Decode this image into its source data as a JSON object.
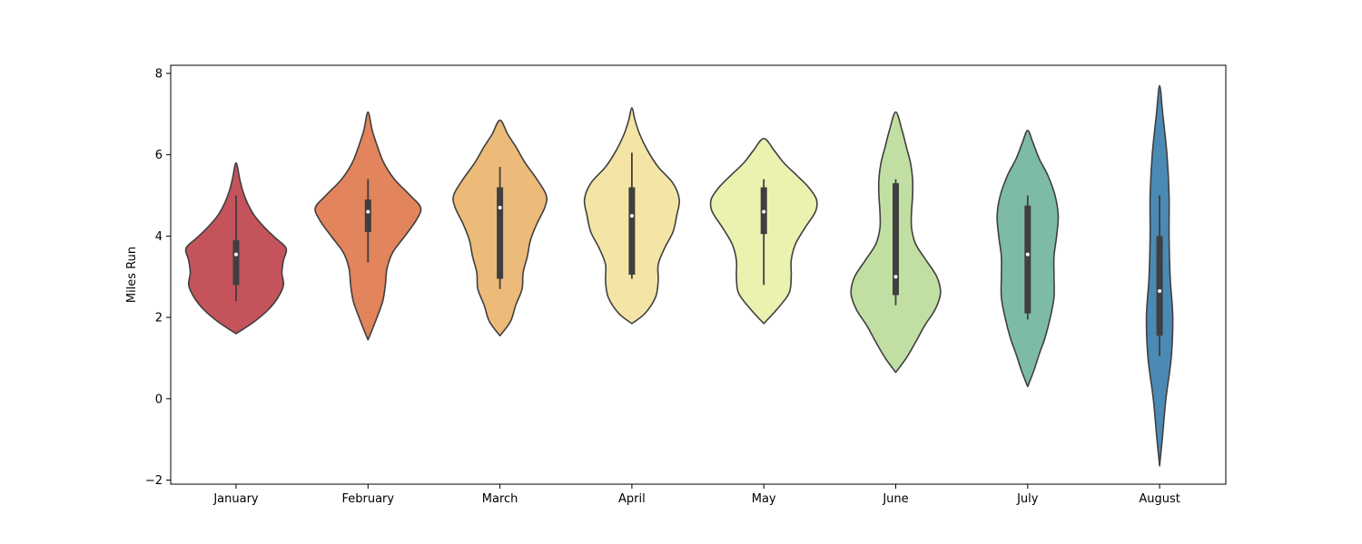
{
  "chart_data": {
    "type": "violin",
    "title": "",
    "xlabel": "",
    "ylabel": "Miles Run",
    "ylim": [
      -2.1,
      8.2
    ],
    "yticks": [
      -2,
      0,
      2,
      4,
      6,
      8
    ],
    "ytick_labels": [
      "−2",
      "0",
      "2",
      "4",
      "6",
      "8"
    ],
    "grid": false,
    "legend": "none",
    "categories": [
      "January",
      "February",
      "March",
      "April",
      "May",
      "June",
      "July",
      "August"
    ],
    "colors": [
      "#c4535c",
      "#e2845c",
      "#ecbb79",
      "#f4e5a6",
      "#ebf2b0",
      "#c2dfa3",
      "#7dbba6",
      "#4b8ab4"
    ],
    "violins": [
      {
        "name": "January",
        "density": [
          [
            1.6,
            0.0
          ],
          [
            1.9,
            0.35
          ],
          [
            2.2,
            0.62
          ],
          [
            2.5,
            0.8
          ],
          [
            2.8,
            0.9
          ],
          [
            3.1,
            0.87
          ],
          [
            3.4,
            0.9
          ],
          [
            3.7,
            0.95
          ],
          [
            3.95,
            0.75
          ],
          [
            4.2,
            0.55
          ],
          [
            4.5,
            0.35
          ],
          [
            4.8,
            0.22
          ],
          [
            5.1,
            0.13
          ],
          [
            5.4,
            0.07
          ],
          [
            5.8,
            0.0
          ]
        ],
        "whisker_low": 2.4,
        "q1": 2.8,
        "median": 3.55,
        "q3": 3.9,
        "whisker_high": 5.0
      },
      {
        "name": "February",
        "density": [
          [
            1.45,
            0.0
          ],
          [
            1.7,
            0.08
          ],
          [
            2.0,
            0.17
          ],
          [
            2.4,
            0.28
          ],
          [
            2.8,
            0.33
          ],
          [
            3.2,
            0.36
          ],
          [
            3.6,
            0.47
          ],
          [
            4.0,
            0.7
          ],
          [
            4.4,
            0.92
          ],
          [
            4.7,
            1.0
          ],
          [
            5.0,
            0.8
          ],
          [
            5.4,
            0.5
          ],
          [
            5.8,
            0.3
          ],
          [
            6.2,
            0.18
          ],
          [
            6.6,
            0.08
          ],
          [
            7.05,
            0.0
          ]
        ],
        "whisker_low": 3.35,
        "q1": 4.1,
        "median": 4.6,
        "q3": 4.9,
        "whisker_high": 5.4
      },
      {
        "name": "March",
        "density": [
          [
            1.55,
            0.0
          ],
          [
            1.9,
            0.2
          ],
          [
            2.3,
            0.3
          ],
          [
            2.7,
            0.42
          ],
          [
            3.1,
            0.44
          ],
          [
            3.5,
            0.52
          ],
          [
            3.9,
            0.58
          ],
          [
            4.3,
            0.7
          ],
          [
            4.7,
            0.85
          ],
          [
            5.0,
            0.88
          ],
          [
            5.4,
            0.7
          ],
          [
            5.8,
            0.48
          ],
          [
            6.2,
            0.3
          ],
          [
            6.5,
            0.15
          ],
          [
            6.85,
            0.0
          ]
        ],
        "whisker_low": 2.7,
        "q1": 2.95,
        "median": 4.7,
        "q3": 5.2,
        "whisker_high": 5.7
      },
      {
        "name": "April",
        "density": [
          [
            1.85,
            0.0
          ],
          [
            2.1,
            0.25
          ],
          [
            2.5,
            0.45
          ],
          [
            2.9,
            0.5
          ],
          [
            3.3,
            0.5
          ],
          [
            3.7,
            0.62
          ],
          [
            4.1,
            0.78
          ],
          [
            4.5,
            0.85
          ],
          [
            4.9,
            0.9
          ],
          [
            5.3,
            0.78
          ],
          [
            5.7,
            0.5
          ],
          [
            6.1,
            0.3
          ],
          [
            6.5,
            0.15
          ],
          [
            6.85,
            0.06
          ],
          [
            7.15,
            0.0
          ]
        ],
        "whisker_low": 2.95,
        "q1": 3.05,
        "median": 4.5,
        "q3": 5.2,
        "whisker_high": 6.05
      },
      {
        "name": "May",
        "density": [
          [
            1.85,
            0.0
          ],
          [
            2.2,
            0.25
          ],
          [
            2.6,
            0.48
          ],
          [
            3.0,
            0.52
          ],
          [
            3.4,
            0.52
          ],
          [
            3.8,
            0.6
          ],
          [
            4.2,
            0.78
          ],
          [
            4.6,
            0.98
          ],
          [
            4.9,
            1.0
          ],
          [
            5.2,
            0.85
          ],
          [
            5.5,
            0.62
          ],
          [
            5.8,
            0.38
          ],
          [
            6.1,
            0.2
          ],
          [
            6.4,
            0.0
          ]
        ],
        "whisker_low": 2.8,
        "q1": 4.05,
        "median": 4.6,
        "q3": 5.2,
        "whisker_high": 5.4
      },
      {
        "name": "June",
        "density": [
          [
            0.65,
            0.0
          ],
          [
            1.0,
            0.2
          ],
          [
            1.4,
            0.38
          ],
          [
            1.8,
            0.55
          ],
          [
            2.2,
            0.75
          ],
          [
            2.6,
            0.85
          ],
          [
            3.0,
            0.78
          ],
          [
            3.4,
            0.58
          ],
          [
            3.8,
            0.38
          ],
          [
            4.2,
            0.3
          ],
          [
            4.6,
            0.3
          ],
          [
            5.0,
            0.32
          ],
          [
            5.4,
            0.32
          ],
          [
            5.8,
            0.28
          ],
          [
            6.2,
            0.2
          ],
          [
            6.6,
            0.12
          ],
          [
            7.05,
            0.0
          ]
        ],
        "whisker_low": 2.3,
        "q1": 2.55,
        "median": 3.0,
        "q3": 5.3,
        "whisker_high": 5.4
      },
      {
        "name": "July",
        "density": [
          [
            0.3,
            0.0
          ],
          [
            0.7,
            0.12
          ],
          [
            1.1,
            0.22
          ],
          [
            1.5,
            0.33
          ],
          [
            2.0,
            0.43
          ],
          [
            2.5,
            0.5
          ],
          [
            3.0,
            0.5
          ],
          [
            3.5,
            0.5
          ],
          [
            4.0,
            0.55
          ],
          [
            4.5,
            0.58
          ],
          [
            5.0,
            0.52
          ],
          [
            5.5,
            0.38
          ],
          [
            5.9,
            0.22
          ],
          [
            6.3,
            0.1
          ],
          [
            6.6,
            0.0
          ]
        ],
        "whisker_low": 1.95,
        "q1": 2.1,
        "median": 3.55,
        "q3": 4.75,
        "whisker_high": 5.0
      },
      {
        "name": "August",
        "density": [
          [
            -1.65,
            0.0
          ],
          [
            -1.0,
            0.05
          ],
          [
            0.0,
            0.12
          ],
          [
            1.0,
            0.22
          ],
          [
            2.0,
            0.25
          ],
          [
            3.0,
            0.2
          ],
          [
            4.0,
            0.18
          ],
          [
            5.0,
            0.18
          ],
          [
            6.0,
            0.14
          ],
          [
            7.0,
            0.06
          ],
          [
            7.7,
            0.0
          ]
        ],
        "whisker_low": 1.05,
        "q1": 1.55,
        "median": 2.65,
        "q3": 4.0,
        "whisker_high": 5.0
      }
    ]
  }
}
